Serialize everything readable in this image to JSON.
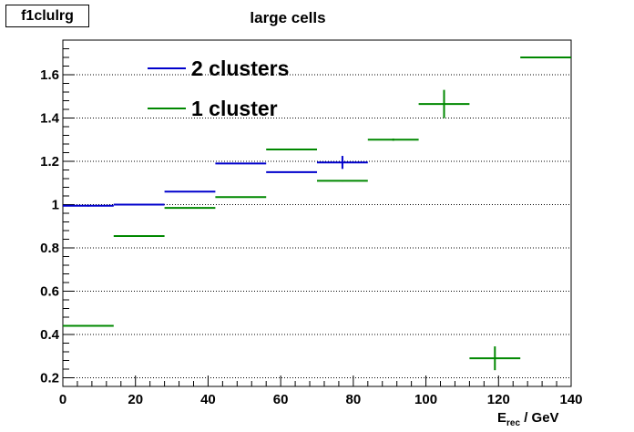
{
  "statbox": {
    "label": "f1clulrg"
  },
  "chart_data": {
    "type": "scatter",
    "title": "large cells",
    "xlabel": {
      "main": "E",
      "sub": "rec",
      "suffix": " / GeV"
    },
    "ylabel": "",
    "xlim": [
      0,
      140
    ],
    "ylim": [
      0.16,
      1.76
    ],
    "xticks": [
      0,
      20,
      40,
      60,
      80,
      100,
      120,
      140
    ],
    "xtick_labels": [
      "0",
      "20",
      "40",
      "60",
      "80",
      "100",
      "120",
      "140"
    ],
    "yticks": [
      0.2,
      0.4,
      0.6,
      0.8,
      1.0,
      1.2,
      1.4,
      1.6
    ],
    "ytick_labels": [
      "0.2",
      "0.4",
      "0.6",
      "0.8",
      "1",
      "1.2",
      "1.4",
      "1.6"
    ],
    "grid": "horizontal-dotted",
    "legend_position": "top-left",
    "series": [
      {
        "name": "2 clusters",
        "color": "#0000cc",
        "points": [
          {
            "x": 7,
            "xerr": 7,
            "y": 0.995,
            "yerr": 0.004
          },
          {
            "x": 21,
            "xerr": 7,
            "y": 1.0,
            "yerr": 0.0
          },
          {
            "x": 35,
            "xerr": 7,
            "y": 1.06,
            "yerr": 0.0
          },
          {
            "x": 49,
            "xerr": 7,
            "y": 1.19,
            "yerr": 0.0
          },
          {
            "x": 63,
            "xerr": 7,
            "y": 1.15,
            "yerr": 0.0
          },
          {
            "x": 77,
            "xerr": 7,
            "y": 1.195,
            "yerr": 0.03
          }
        ]
      },
      {
        "name": "1 cluster",
        "color": "#008800",
        "points": [
          {
            "x": 7,
            "xerr": 7,
            "y": 0.44,
            "yerr": 0.0
          },
          {
            "x": 21,
            "xerr": 7,
            "y": 0.855,
            "yerr": 0.0
          },
          {
            "x": 35,
            "xerr": 7,
            "y": 0.985,
            "yerr": 0.0
          },
          {
            "x": 49,
            "xerr": 7,
            "y": 1.035,
            "yerr": 0.0
          },
          {
            "x": 63,
            "xerr": 7,
            "y": 1.255,
            "yerr": 0.0
          },
          {
            "x": 77,
            "xerr": 7,
            "y": 1.11,
            "yerr": 0.003
          },
          {
            "x": 91,
            "xerr": 7,
            "y": 1.3,
            "yerr": 0.005
          },
          {
            "x": 105,
            "xerr": 7,
            "y": 1.465,
            "yerr": 0.065
          },
          {
            "x": 119,
            "xerr": 7,
            "y": 0.29,
            "yerr": 0.055
          },
          {
            "x": 133,
            "xerr": 7,
            "y": 1.68,
            "yerr": 0.003
          }
        ]
      }
    ]
  }
}
